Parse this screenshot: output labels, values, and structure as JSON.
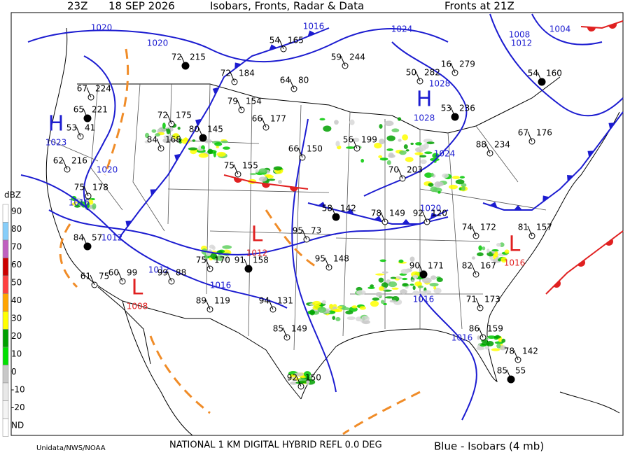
{
  "header": {
    "time": "23Z",
    "date": "18 SEP 2026",
    "title": "Isobars, Fronts, Radar & Data",
    "fronts": "Fronts at 21Z"
  },
  "footer": {
    "credit": "Unidata/NWS/NOAA",
    "product": "NATIONAL 1 KM DIGITAL HYBRID REFL 0.0 DEG",
    "legend": "Blue - Isobars (4 mb)"
  },
  "scale": {
    "unit": "dBZ",
    "labels": [
      "90",
      "80",
      "70",
      "60",
      "50",
      "40",
      "30",
      "20",
      "10",
      "0",
      "-10",
      "-20",
      "ND"
    ],
    "colors": [
      "#ffffff",
      "#87cefa",
      "#c060c0",
      "#cc0000",
      "#ff4040",
      "#ffa500",
      "#ffff00",
      "#00a000",
      "#00e000",
      "#c8c8c8",
      "#e8e8e8",
      "#f4f4f4",
      "#ffffff"
    ]
  },
  "pressure_centers": [
    {
      "symbol": "H",
      "value": "1023",
      "color": "#1c1cd0"
    },
    {
      "symbol": "H",
      "value": "1028",
      "color": "#1c1cd0"
    },
    {
      "symbol": "L",
      "value": "1008",
      "color": "#e02020"
    },
    {
      "symbol": "L",
      "value": "1012",
      "color": "#e02020"
    },
    {
      "symbol": "L",
      "value": "1016",
      "color": "#e02020"
    }
  ],
  "isobar_labels": [
    "1020",
    "1020",
    "1016",
    "1024",
    "1008",
    "1004",
    "1012",
    "1028",
    "1020",
    "1016",
    "1012",
    "1012",
    "1016",
    "1016",
    "1020",
    "1016",
    "1024"
  ],
  "stations": [
    {
      "temp": "72",
      "pressure": "215"
    },
    {
      "temp": "72",
      "pressure": "184"
    },
    {
      "temp": "64",
      "pressure": "80"
    },
    {
      "temp": "59",
      "pressure": "244"
    },
    {
      "temp": "67",
      "pressure": "224"
    },
    {
      "temp": "65",
      "pressure": "221"
    },
    {
      "temp": "53",
      "pressure": "41"
    },
    {
      "temp": "62",
      "pressure": "216"
    },
    {
      "temp": "75",
      "pressure": "178"
    },
    {
      "temp": "72",
      "pressure": "175"
    },
    {
      "temp": "80",
      "pressure": "145"
    },
    {
      "temp": "66",
      "pressure": "177"
    },
    {
      "temp": "66",
      "pressure": "150"
    },
    {
      "temp": "56",
      "pressure": "199"
    },
    {
      "temp": "70",
      "pressure": "203"
    },
    {
      "temp": "53",
      "pressure": "236"
    },
    {
      "temp": "88",
      "pressure": "234"
    },
    {
      "temp": "67",
      "pressure": "176"
    },
    {
      "temp": "16",
      "pressure": "279"
    },
    {
      "temp": "50",
      "pressure": "282"
    },
    {
      "temp": "54",
      "pressure": "160"
    },
    {
      "temp": "54",
      "pressure": "165"
    },
    {
      "temp": "79",
      "pressure": "154"
    },
    {
      "temp": "84",
      "pressure": "168"
    },
    {
      "temp": "75",
      "pressure": "155"
    },
    {
      "temp": "58",
      "pressure": "142"
    },
    {
      "temp": "78",
      "pressure": "149"
    },
    {
      "temp": "92",
      "pressure": "120"
    },
    {
      "temp": "95",
      "pressure": "73"
    },
    {
      "temp": "95",
      "pressure": "148"
    },
    {
      "temp": "84",
      "pressure": "57"
    },
    {
      "temp": "61",
      "pressure": "75"
    },
    {
      "temp": "60",
      "pressure": "99"
    },
    {
      "temp": "99",
      "pressure": "88"
    },
    {
      "temp": "75",
      "pressure": "170"
    },
    {
      "temp": "91",
      "pressure": "158"
    },
    {
      "temp": "89",
      "pressure": "119"
    },
    {
      "temp": "94",
      "pressure": "131"
    },
    {
      "temp": "85",
      "pressure": "149"
    },
    {
      "temp": "92",
      "pressure": "150"
    },
    {
      "temp": "90",
      "pressure": "171"
    },
    {
      "temp": "82",
      "pressure": "167"
    },
    {
      "temp": "71",
      "pressure": "173"
    },
    {
      "temp": "86",
      "pressure": "159"
    },
    {
      "temp": "78",
      "pressure": "142"
    },
    {
      "temp": "85",
      "pressure": "55"
    },
    {
      "temp": "81",
      "pressure": "157"
    },
    {
      "temp": "74",
      "pressure": "172"
    }
  ]
}
